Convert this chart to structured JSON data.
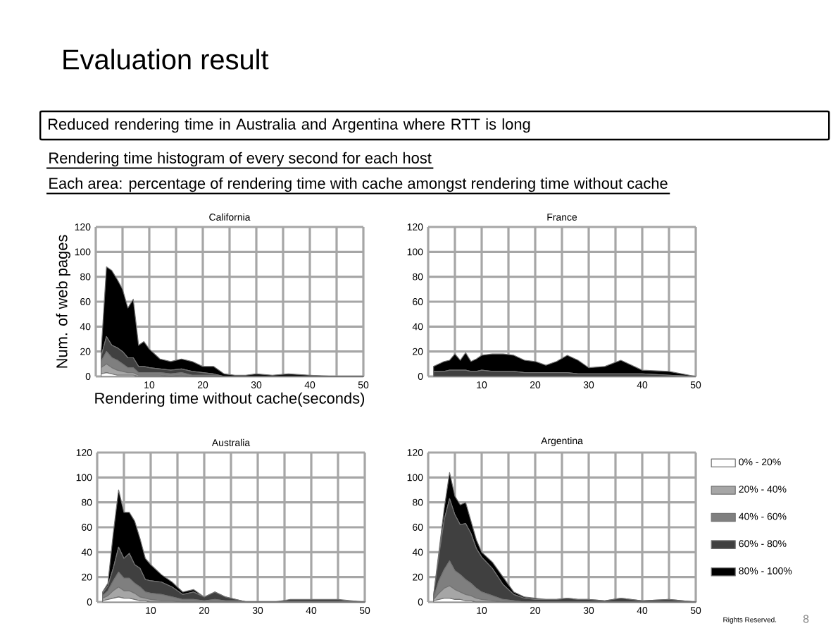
{
  "chart_data": [
    {
      "type": "other",
      "title": "Evaluation result",
      "annotations": [
        "Reduced rendering time in Australia and Argentina where RTT is long",
        "Rendering time histogram of every second for each host",
        "Each area: percentage of rendering time with cache amongst rendering time without cache",
        "Rights Reserved.",
        "8"
      ]
    },
    {
      "type": "area",
      "stacked": true,
      "title": "California",
      "xlabel": "Rendering time without cache(seconds)",
      "ylabel": "Num. of web pages",
      "grid": true,
      "x": [
        1,
        2,
        3,
        4,
        5,
        6,
        7,
        8,
        9,
        10,
        12,
        14,
        16,
        18,
        20,
        22,
        24,
        26,
        28,
        30,
        33,
        36,
        40,
        45,
        50
      ],
      "xlim": [
        0,
        50
      ],
      "xticks": [
        {
          "value": 0,
          "label": null
        },
        {
          "value": 5,
          "label": null
        },
        10,
        {
          "value": 15,
          "label": null
        },
        20,
        {
          "value": 25,
          "label": null
        },
        30,
        {
          "value": 35,
          "label": null
        },
        40,
        {
          "value": 45,
          "label": null
        },
        50
      ],
      "ylim": [
        0,
        120
      ],
      "yticks": [
        0,
        20,
        40,
        60,
        80,
        100,
        120
      ],
      "series": [
        {
          "color": "#ffffff",
          "values": [
            2,
            3,
            2,
            1,
            1,
            1,
            1,
            0,
            0,
            0,
            0,
            0,
            0,
            0,
            0,
            0,
            0,
            0,
            0,
            0,
            0,
            0,
            0,
            0,
            0
          ]
        },
        {
          "color": "#a6a6a6",
          "values": [
            5,
            7,
            5,
            4,
            3,
            2,
            2,
            1,
            1,
            1,
            1,
            0,
            1,
            0,
            0,
            0,
            0,
            0,
            0,
            0,
            0,
            0,
            0,
            0,
            0
          ]
        },
        {
          "color": "#7f7f7f",
          "values": [
            5,
            10,
            8,
            8,
            6,
            4,
            4,
            2,
            2,
            2,
            2,
            2,
            2,
            1,
            1,
            1,
            0,
            0,
            0,
            0,
            0,
            0,
            0,
            0,
            0
          ]
        },
        {
          "color": "#404040",
          "values": [
            4,
            12,
            10,
            10,
            10,
            8,
            8,
            5,
            5,
            4,
            3,
            3,
            3,
            3,
            2,
            1,
            0,
            0,
            0,
            0,
            0,
            0,
            0,
            0,
            0
          ]
        },
        {
          "color": "#000000",
          "values": [
            4,
            56,
            60,
            55,
            50,
            40,
            47,
            17,
            20,
            15,
            8,
            7,
            8,
            8,
            5,
            6,
            2,
            1,
            1,
            2,
            1,
            2,
            1,
            0,
            0
          ]
        }
      ]
    },
    {
      "type": "area",
      "stacked": true,
      "title": "France",
      "grid": true,
      "x": [
        1,
        2,
        3,
        4,
        5,
        6,
        7,
        8,
        9,
        10,
        12,
        14,
        16,
        18,
        20,
        22,
        24,
        26,
        28,
        30,
        33,
        36,
        40,
        45,
        50
      ],
      "xlim": [
        0,
        50
      ],
      "xticks": [
        {
          "value": 0,
          "label": null
        },
        {
          "value": 5,
          "label": null
        },
        10,
        {
          "value": 15,
          "label": null
        },
        20,
        {
          "value": 25,
          "label": null
        },
        30,
        {
          "value": 35,
          "label": null
        },
        40,
        {
          "value": 45,
          "label": null
        },
        50
      ],
      "ylim": [
        0,
        120
      ],
      "yticks": [
        0,
        20,
        40,
        60,
        80,
        100,
        120
      ],
      "series": [
        {
          "color": "#404040",
          "values": [
            4,
            4,
            4,
            5,
            5,
            5,
            5,
            4,
            4,
            5,
            4,
            4,
            4,
            3,
            3,
            3,
            3,
            3,
            2,
            2,
            2,
            2,
            2,
            1,
            0
          ]
        },
        {
          "color": "#000000",
          "values": [
            4,
            6,
            8,
            8,
            13,
            8,
            14,
            8,
            10,
            12,
            14,
            14,
            13,
            10,
            9,
            6,
            9,
            14,
            11,
            5,
            6,
            11,
            3,
            3,
            0
          ]
        }
      ]
    },
    {
      "type": "area",
      "stacked": true,
      "title": "Australia",
      "grid": true,
      "x": [
        1,
        2,
        3,
        4,
        5,
        6,
        7,
        8,
        9,
        10,
        12,
        14,
        16,
        18,
        20,
        22,
        24,
        26,
        28,
        30,
        33,
        36,
        40,
        45,
        50
      ],
      "xlim": [
        0,
        50
      ],
      "xticks": [
        {
          "value": 0,
          "label": null
        },
        {
          "value": 5,
          "label": null
        },
        10,
        {
          "value": 15,
          "label": null
        },
        20,
        {
          "value": 25,
          "label": null
        },
        30,
        {
          "value": 35,
          "label": null
        },
        40,
        {
          "value": 45,
          "label": null
        },
        50
      ],
      "ylim": [
        0,
        120
      ],
      "yticks": [
        0,
        20,
        40,
        60,
        80,
        100,
        120
      ],
      "series": [
        {
          "color": "#ffffff",
          "values": [
            1,
            2,
            3,
            4,
            3,
            3,
            2,
            1,
            1,
            0,
            0,
            0,
            0,
            0,
            0,
            0,
            0,
            0,
            0,
            0,
            0,
            0,
            0,
            0,
            0
          ]
        },
        {
          "color": "#a6a6a6",
          "values": [
            2,
            3,
            6,
            8,
            6,
            6,
            5,
            3,
            2,
            2,
            1,
            1,
            0,
            0,
            0,
            0,
            0,
            0,
            0,
            0,
            0,
            0,
            0,
            0,
            0
          ]
        },
        {
          "color": "#7f7f7f",
          "values": [
            2,
            4,
            8,
            12,
            10,
            10,
            8,
            8,
            5,
            5,
            5,
            3,
            2,
            2,
            1,
            2,
            1,
            1,
            0,
            0,
            0,
            0,
            0,
            0,
            0
          ]
        },
        {
          "color": "#404040",
          "values": [
            2,
            4,
            10,
            20,
            16,
            20,
            15,
            15,
            10,
            10,
            10,
            8,
            4,
            6,
            3,
            6,
            3,
            1,
            0,
            0,
            0,
            1,
            1,
            1,
            0
          ]
        },
        {
          "color": "#000000",
          "values": [
            1,
            2,
            28,
            46,
            37,
            33,
            35,
            24,
            17,
            13,
            6,
            4,
            2,
            2,
            0,
            0,
            0,
            0,
            0,
            0,
            0,
            1,
            1,
            1,
            0
          ]
        }
      ]
    },
    {
      "type": "area",
      "stacked": true,
      "title": "Argentina",
      "grid": true,
      "legend": "right",
      "x": [
        1,
        2,
        3,
        4,
        5,
        6,
        7,
        8,
        9,
        10,
        12,
        14,
        16,
        18,
        20,
        22,
        24,
        26,
        28,
        30,
        33,
        36,
        40,
        45,
        50
      ],
      "xlim": [
        0,
        50
      ],
      "xticks": [
        {
          "value": 0,
          "label": null
        },
        {
          "value": 5,
          "label": null
        },
        10,
        {
          "value": 15,
          "label": null
        },
        20,
        {
          "value": 25,
          "label": null
        },
        30,
        {
          "value": 35,
          "label": null
        },
        40,
        {
          "value": 45,
          "label": null
        },
        50
      ],
      "ylim": [
        0,
        120
      ],
      "yticks": [
        0,
        20,
        40,
        60,
        80,
        100,
        120
      ],
      "series": [
        {
          "name": "0% - 20%",
          "color": "#ffffff",
          "values": [
            1,
            2,
            3,
            3,
            2,
            2,
            1,
            1,
            0,
            0,
            0,
            0,
            0,
            0,
            0,
            0,
            0,
            0,
            0,
            0,
            0,
            0,
            0,
            0,
            0
          ]
        },
        {
          "name": "20% - 40%",
          "color": "#a6a6a6",
          "values": [
            1,
            5,
            8,
            10,
            8,
            6,
            5,
            4,
            3,
            2,
            1,
            0,
            0,
            0,
            0,
            0,
            0,
            0,
            0,
            0,
            0,
            0,
            0,
            0,
            0
          ]
        },
        {
          "name": "40% - 60%",
          "color": "#7f7f7f",
          "values": [
            1,
            10,
            15,
            20,
            15,
            14,
            12,
            10,
            8,
            6,
            4,
            2,
            1,
            0,
            0,
            0,
            0,
            0,
            0,
            0,
            0,
            0,
            0,
            0,
            0
          ]
        },
        {
          "name": "60% - 80%",
          "color": "#404040",
          "values": [
            2,
            20,
            40,
            50,
            45,
            40,
            45,
            40,
            32,
            28,
            22,
            12,
            5,
            3,
            2,
            2,
            2,
            3,
            2,
            2,
            1,
            3,
            1,
            2,
            0
          ]
        },
        {
          "name": "80% - 100%",
          "color": "#000000",
          "values": [
            0,
            3,
            9,
            21,
            15,
            16,
            17,
            10,
            7,
            4,
            5,
            6,
            2,
            1,
            1,
            0,
            0,
            0,
            0,
            0,
            0,
            0,
            0,
            0,
            0
          ]
        }
      ]
    }
  ]
}
